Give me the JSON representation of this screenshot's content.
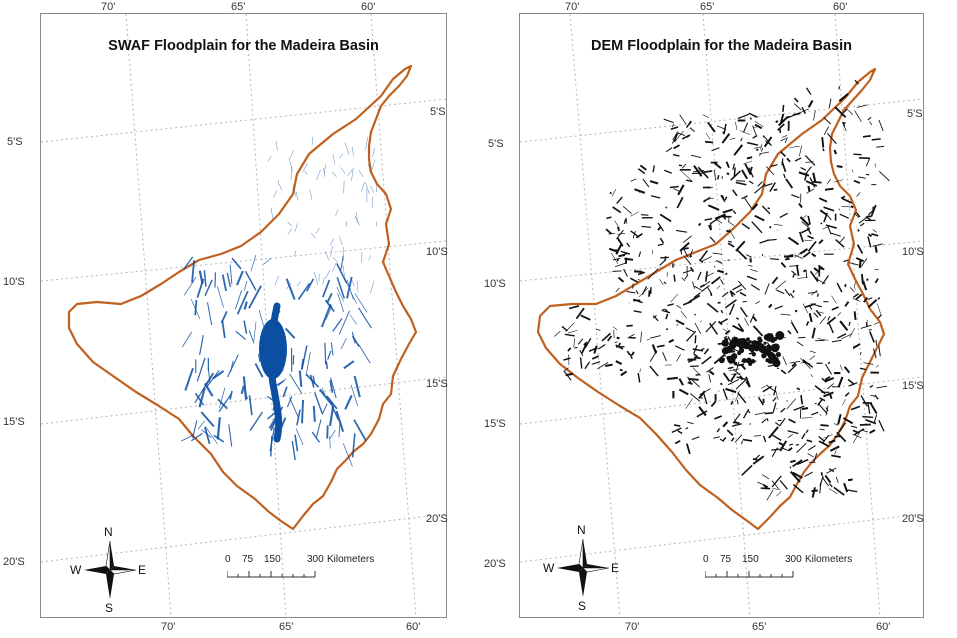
{
  "panels": [
    {
      "title": "SWAF Floodplain for the Madeira Basin",
      "floodplain_color": "#0b4ea2",
      "boundary_color": "#c0601f",
      "top_lon_labels": [
        "70'",
        "65'",
        "60'"
      ],
      "bottom_lon_labels": [
        "70'",
        "65'",
        "60'"
      ],
      "left_lat_labels": [
        "5'S",
        "10'S",
        "15'S",
        "20'S"
      ],
      "right_lat_labels": [
        "5'S",
        "10'S",
        "15'S",
        "20'S"
      ],
      "scale": {
        "ticks": [
          "0",
          "75",
          "150",
          "300"
        ],
        "unit": "Kilometers"
      },
      "compass": {
        "n": "N",
        "s": "S",
        "e": "E",
        "w": "W"
      }
    },
    {
      "title": "DEM Floodplain for the Madeira Basin",
      "floodplain_color": "#111111",
      "boundary_color": "#c0601f",
      "top_lon_labels": [
        "70'",
        "65'",
        "60'"
      ],
      "bottom_lon_labels": [
        "70'",
        "65'",
        "60'"
      ],
      "left_lat_labels": [
        "5'S",
        "10'S",
        "15'S",
        "20'S"
      ],
      "right_lat_labels": [
        "5'S",
        "10'S",
        "15'S",
        "20'S"
      ],
      "scale": {
        "ticks": [
          "0",
          "75",
          "150",
          "300"
        ],
        "unit": "Kilometers"
      },
      "compass": {
        "n": "N",
        "s": "S",
        "e": "E",
        "w": "W"
      }
    }
  ]
}
